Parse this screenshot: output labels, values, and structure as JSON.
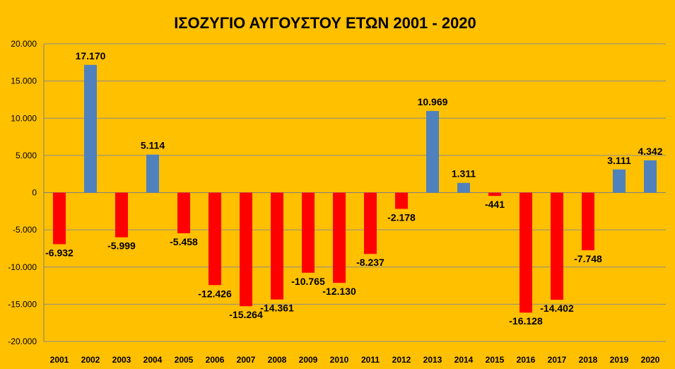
{
  "chart_data": {
    "type": "bar",
    "title": "ΙΣΟΖΥΓΙΟ  ΑΥΓΟΥΣΤΟΥ ΕΤΩΝ 2001 - 2020",
    "xlabel": "",
    "ylabel": "",
    "ylim": [
      -20000,
      20000
    ],
    "yticks": [
      20000,
      15000,
      10000,
      5000,
      0,
      -5000,
      -10000,
      -15000,
      -20000
    ],
    "ytick_labels": [
      "20.000",
      "15.000",
      "10.000",
      "5.000",
      "0",
      "-5.000",
      "-10.000",
      "-15.000",
      "-20.000"
    ],
    "grid": true,
    "legend": "none",
    "categories": [
      "2001",
      "2002",
      "2003",
      "2004",
      "2005",
      "2006",
      "2007",
      "2008",
      "2009",
      "2010",
      "2011",
      "2012",
      "2013",
      "2014",
      "2015",
      "2016",
      "2017",
      "2018",
      "2019",
      "2020"
    ],
    "values": [
      -6932,
      17170,
      -5999,
      5114,
      -5458,
      -12426,
      -15264,
      -14361,
      -10765,
      -12130,
      -8237,
      -2178,
      10969,
      1311,
      -441,
      -16128,
      -14402,
      -7748,
      3111,
      4342
    ],
    "data_labels": [
      "-6.932",
      "17.170",
      "-5.999",
      "5.114",
      "-5.458",
      "-12.426",
      "-15.264",
      "-14.361",
      "-10.765",
      "-12.130",
      "-8.237",
      "-2.178",
      "10.969",
      "1.311",
      "-441",
      "-16.128",
      "-14.402",
      "-7.748",
      "3.111",
      "4.342"
    ],
    "colors": {
      "positive": "#4F81BD",
      "negative": "#FF0000",
      "background": "#FFC000",
      "grid": "#8C8C8C"
    }
  }
}
